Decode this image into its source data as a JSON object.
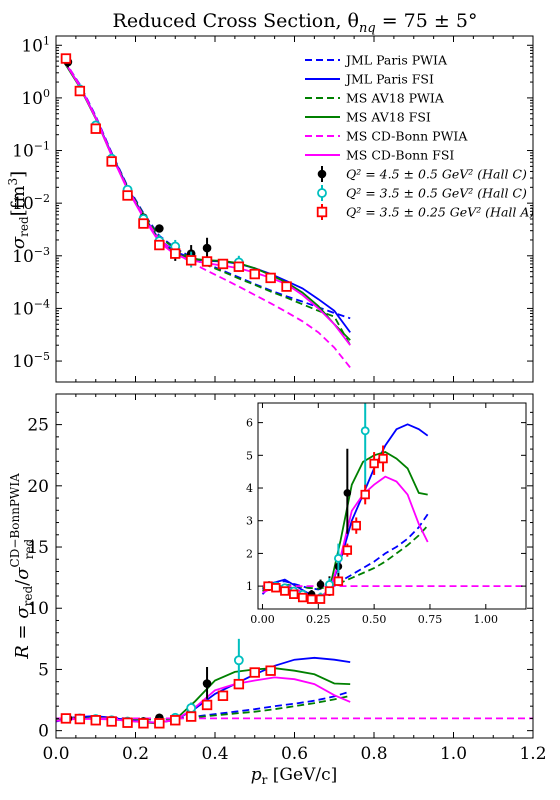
{
  "title": "Reduced Cross Section, θ",
  "title_sub": "nq",
  "title_tail": " = 75 ± 5°",
  "legend": {
    "lines": [
      {
        "label": "JML Paris PWIA",
        "color": "#0000ff",
        "dash": true
      },
      {
        "label": "JML Paris FSI",
        "color": "#0000ff",
        "dash": false
      },
      {
        "label": "MS AV18 PWIA",
        "color": "#008000",
        "dash": true
      },
      {
        "label": "MS AV18 FSI",
        "color": "#008000",
        "dash": false
      },
      {
        "label": "MS CD-Bonn PWIA",
        "color": "#ff00ff",
        "dash": true
      },
      {
        "label": "MS CD-Bonn FSI",
        "color": "#ff00ff",
        "dash": false
      }
    ],
    "points": [
      {
        "label": "Q² = 4.5 ± 0.5 GeV² (Hall C)",
        "color": "#000000",
        "marker": "filled-circle"
      },
      {
        "label": "Q² = 3.5 ± 0.5 GeV² (Hall C)",
        "color": "#00bfbf",
        "marker": "open-circle"
      },
      {
        "label": "Q² = 3.5 ± 0.25 GeV² (Hall A)",
        "color": "#ff0000",
        "marker": "open-square"
      }
    ]
  },
  "chart_data": [
    {
      "type": "line",
      "panel": "top",
      "ylabel": "σ_red [fm³]",
      "yscale": "log",
      "ylim": [
        4e-06,
        15
      ],
      "xlim": [
        0.0,
        1.2
      ],
      "yticks": [
        {
          "v": 1e-05,
          "m": "10",
          "e": "−5"
        },
        {
          "v": 0.0001,
          "m": "10",
          "e": "−4"
        },
        {
          "v": 0.001,
          "m": "10",
          "e": "−3"
        },
        {
          "v": 0.01,
          "m": "10",
          "e": "−2"
        },
        {
          "v": 0.1,
          "m": "10",
          "e": "−1"
        },
        {
          "v": 1,
          "m": "10",
          "e": "0"
        },
        {
          "v": 10,
          "m": "10",
          "e": "1"
        }
      ],
      "series": [
        {
          "name": "JML Paris PWIA",
          "color": "#0000ff",
          "dash": true,
          "x": [
            0.02,
            0.06,
            0.1,
            0.14,
            0.18,
            0.22,
            0.26,
            0.3,
            0.34,
            0.38,
            0.42,
            0.46,
            0.5,
            0.54,
            0.58,
            0.62,
            0.66,
            0.7,
            0.74
          ],
          "y": [
            5.2,
            1.8,
            0.45,
            0.09,
            0.021,
            0.0065,
            0.0024,
            0.0014,
            0.00095,
            0.0007,
            0.00052,
            0.00039,
            0.00029,
            0.00022,
            0.00017,
            0.000135,
            0.000105,
            8.2e-05,
            6.5e-05
          ]
        },
        {
          "name": "JML Paris FSI",
          "color": "#0000ff",
          "dash": false,
          "x": [
            0.02,
            0.06,
            0.1,
            0.14,
            0.18,
            0.22,
            0.26,
            0.3,
            0.34,
            0.38,
            0.42,
            0.46,
            0.5,
            0.54,
            0.58,
            0.62,
            0.66,
            0.7,
            0.74
          ],
          "y": [
            5.0,
            1.7,
            0.42,
            0.085,
            0.02,
            0.0058,
            0.002,
            0.0012,
            0.0009,
            0.0008,
            0.00078,
            0.0007,
            0.00058,
            0.00045,
            0.00033,
            0.00024,
            0.00015,
            9e-05,
            3.5e-05
          ]
        },
        {
          "name": "MS AV18 PWIA",
          "color": "#008000",
          "dash": true,
          "x": [
            0.02,
            0.06,
            0.1,
            0.14,
            0.18,
            0.22,
            0.26,
            0.3,
            0.34,
            0.38,
            0.42,
            0.46,
            0.5,
            0.54,
            0.58,
            0.62,
            0.66,
            0.7,
            0.74
          ],
          "y": [
            5.0,
            1.7,
            0.42,
            0.085,
            0.02,
            0.0062,
            0.0023,
            0.00135,
            0.0009,
            0.00066,
            0.0005,
            0.00037,
            0.00028,
            0.00021,
            0.00016,
            0.00012,
            9e-05,
            7e-05,
            2e-05
          ]
        },
        {
          "name": "MS AV18 FSI",
          "color": "#008000",
          "dash": false,
          "x": [
            0.02,
            0.06,
            0.1,
            0.14,
            0.18,
            0.22,
            0.26,
            0.3,
            0.34,
            0.38,
            0.42,
            0.46,
            0.5,
            0.54,
            0.58,
            0.62,
            0.66,
            0.7,
            0.74
          ],
          "y": [
            4.8,
            1.6,
            0.4,
            0.08,
            0.019,
            0.0056,
            0.0019,
            0.0011,
            0.00088,
            0.00082,
            0.0008,
            0.00072,
            0.00058,
            0.00043,
            0.00031,
            0.0002,
            0.00011,
            5e-05,
            2.5e-05
          ]
        },
        {
          "name": "MS CD-Bonn PWIA",
          "color": "#ff00ff",
          "dash": true,
          "x": [
            0.02,
            0.06,
            0.1,
            0.14,
            0.18,
            0.22,
            0.26,
            0.3,
            0.34,
            0.38,
            0.42,
            0.46,
            0.5,
            0.54,
            0.58,
            0.62,
            0.66,
            0.7,
            0.74
          ],
          "y": [
            5.3,
            1.75,
            0.43,
            0.085,
            0.019,
            0.0058,
            0.002,
            0.00115,
            0.00075,
            0.00052,
            0.00037,
            0.00026,
            0.00018,
            0.000125,
            8.5e-05,
            5.7e-05,
            3.5e-05,
            1.8e-05,
            7.5e-06
          ]
        },
        {
          "name": "MS CD-Bonn FSI",
          "color": "#ff00ff",
          "dash": false,
          "x": [
            0.02,
            0.06,
            0.1,
            0.14,
            0.18,
            0.22,
            0.26,
            0.3,
            0.34,
            0.38,
            0.42,
            0.46,
            0.5,
            0.54,
            0.58,
            0.62,
            0.66,
            0.7,
            0.74
          ],
          "y": [
            5.1,
            1.65,
            0.41,
            0.08,
            0.018,
            0.0053,
            0.0018,
            0.00105,
            0.00082,
            0.00072,
            0.00065,
            0.00058,
            0.00048,
            0.00038,
            0.00029,
            0.00018,
            0.0001,
            5e-05,
            2e-05
          ]
        }
      ],
      "points": [
        {
          "name": "Q² = 4.5 ± 0.5 GeV² (Hall C)",
          "color": "#000000",
          "marker": "filled-circle",
          "x": [
            0.03,
            0.06,
            0.1,
            0.14,
            0.18,
            0.22,
            0.26,
            0.3,
            0.34,
            0.38
          ],
          "y": [
            4.8,
            1.4,
            0.28,
            0.065,
            0.018,
            0.0053,
            0.0033,
            0.0012,
            0.0011,
            0.0014
          ],
          "lo": [
            3.8,
            1.2,
            0.24,
            0.055,
            0.015,
            0.0045,
            0.0028,
            0.0008,
            0.0008,
            0.0009
          ],
          "hi": [
            5.8,
            1.6,
            0.32,
            0.075,
            0.021,
            0.0061,
            0.0038,
            0.0017,
            0.0016,
            0.0022
          ]
        },
        {
          "name": "Q² = 3.5 ± 0.5 GeV² (Hall C)",
          "color": "#00bfbf",
          "marker": "open-circle",
          "x": [
            0.06,
            0.1,
            0.14,
            0.18,
            0.22,
            0.26,
            0.3,
            0.34,
            0.46
          ],
          "y": [
            1.45,
            0.3,
            0.07,
            0.018,
            0.005,
            0.0019,
            0.0015,
            0.00085,
            0.00075
          ],
          "lo": [
            1.3,
            0.26,
            0.06,
            0.015,
            0.0042,
            0.0014,
            0.0011,
            0.0006,
            0.0005
          ],
          "hi": [
            1.6,
            0.34,
            0.08,
            0.021,
            0.0058,
            0.0025,
            0.002,
            0.0012,
            0.001
          ]
        },
        {
          "name": "Q² = 3.5 ± 0.25 GeV² (Hall A)",
          "color": "#ff0000",
          "marker": "open-square",
          "x": [
            0.025,
            0.06,
            0.1,
            0.14,
            0.18,
            0.22,
            0.26,
            0.3,
            0.34,
            0.38,
            0.42,
            0.46,
            0.5,
            0.54,
            0.58
          ],
          "y": [
            5.6,
            1.35,
            0.26,
            0.062,
            0.014,
            0.0041,
            0.0016,
            0.0011,
            0.00082,
            0.00078,
            0.0007,
            0.00062,
            0.00045,
            0.00038,
            0.00026
          ],
          "lo": [
            5.1,
            1.25,
            0.24,
            0.057,
            0.013,
            0.0037,
            0.0014,
            0.00095,
            0.0007,
            0.00067,
            0.0006,
            0.00053,
            0.00038,
            0.00032,
            0.00021
          ],
          "hi": [
            6.1,
            1.45,
            0.28,
            0.067,
            0.015,
            0.0045,
            0.0018,
            0.00125,
            0.00094,
            0.0009,
            0.0008,
            0.00071,
            0.00052,
            0.00044,
            0.00031
          ]
        }
      ]
    },
    {
      "type": "line",
      "panel": "bottom",
      "xlabel": "p_r [GeV/c]",
      "ylabel": "R = σ_red / σ_red^CD−BonnPWIA",
      "xlim": [
        0.0,
        1.2
      ],
      "ylim": [
        -0.6,
        27.5
      ],
      "xticks": [
        0.0,
        0.2,
        0.4,
        0.6,
        0.8,
        1.0,
        1.2
      ],
      "yticks": [
        0,
        5,
        10,
        15,
        20,
        25
      ],
      "series": [
        {
          "name": "JML Paris PWIA",
          "color": "#0000ff",
          "dash": true,
          "x": [
            0.0,
            0.05,
            0.1,
            0.15,
            0.2,
            0.25,
            0.3,
            0.35,
            0.4,
            0.45,
            0.5,
            0.55,
            0.6,
            0.65,
            0.7,
            0.74
          ],
          "y": [
            0.9,
            1.1,
            1.15,
            1.05,
            0.95,
            0.9,
            1.0,
            1.15,
            1.35,
            1.55,
            1.75,
            2.0,
            2.2,
            2.45,
            2.8,
            3.2
          ]
        },
        {
          "name": "JML Paris FSI",
          "color": "#0000ff",
          "dash": false,
          "x": [
            0.0,
            0.05,
            0.1,
            0.15,
            0.2,
            0.25,
            0.3,
            0.35,
            0.4,
            0.45,
            0.5,
            0.55,
            0.6,
            0.65,
            0.7,
            0.74
          ],
          "y": [
            0.75,
            1.1,
            1.2,
            1.0,
            0.8,
            0.65,
            0.85,
            1.8,
            3.0,
            3.8,
            4.6,
            5.3,
            5.8,
            5.95,
            5.8,
            5.6
          ]
        },
        {
          "name": "MS AV18 PWIA",
          "color": "#008000",
          "dash": true,
          "x": [
            0.0,
            0.05,
            0.1,
            0.15,
            0.2,
            0.25,
            0.3,
            0.35,
            0.4,
            0.45,
            0.5,
            0.55,
            0.6,
            0.65,
            0.7,
            0.74
          ],
          "y": [
            0.95,
            1.05,
            1.05,
            1.0,
            0.95,
            0.92,
            0.98,
            1.1,
            1.25,
            1.4,
            1.55,
            1.75,
            2.0,
            2.25,
            2.55,
            2.85
          ]
        },
        {
          "name": "MS AV18 FSI",
          "color": "#008000",
          "dash": false,
          "x": [
            0.0,
            0.05,
            0.1,
            0.15,
            0.2,
            0.25,
            0.3,
            0.35,
            0.4,
            0.45,
            0.5,
            0.55,
            0.6,
            0.65,
            0.7,
            0.74
          ],
          "y": [
            0.85,
            1.0,
            1.0,
            0.9,
            0.75,
            0.6,
            0.9,
            2.4,
            4.1,
            4.8,
            5.0,
            5.1,
            4.9,
            4.6,
            3.85,
            3.8
          ]
        },
        {
          "name": "MS CD-Bonn PWIA",
          "color": "#ff00ff",
          "dash": true,
          "x": [
            0.0,
            0.2,
            0.4,
            0.6,
            0.8,
            1.0,
            1.2
          ],
          "y": [
            1,
            1,
            1,
            1,
            1,
            1,
            1
          ]
        },
        {
          "name": "MS CD-Bonn FSI",
          "color": "#ff00ff",
          "dash": false,
          "x": [
            0.0,
            0.05,
            0.1,
            0.15,
            0.2,
            0.25,
            0.3,
            0.35,
            0.4,
            0.45,
            0.5,
            0.55,
            0.6,
            0.65,
            0.7,
            0.74
          ],
          "y": [
            0.8,
            0.95,
            0.95,
            0.9,
            0.75,
            0.65,
            0.85,
            1.9,
            3.3,
            3.8,
            4.1,
            4.35,
            4.2,
            3.8,
            2.9,
            2.35
          ]
        }
      ],
      "points": [
        {
          "name": "Q² = 4.5 ± 0.5 GeV² (Hall C)",
          "color": "#000000",
          "marker": "filled-circle",
          "x": [
            0.03,
            0.06,
            0.1,
            0.14,
            0.18,
            0.22,
            0.26,
            0.3,
            0.34,
            0.38
          ],
          "y": [
            1.0,
            1.0,
            0.92,
            0.85,
            0.75,
            0.75,
            1.05,
            1.0,
            1.6,
            3.85
          ],
          "lo": [
            0.85,
            0.88,
            0.82,
            0.75,
            0.65,
            0.62,
            0.9,
            0.7,
            1.2,
            2.6
          ],
          "hi": [
            1.15,
            1.12,
            1.02,
            0.95,
            0.85,
            0.88,
            1.2,
            1.3,
            2.0,
            5.2
          ]
        },
        {
          "name": "Q² = 3.5 ± 0.5 GeV² (Hall C)",
          "color": "#00bfbf",
          "marker": "open-circle",
          "x": [
            0.06,
            0.1,
            0.14,
            0.18,
            0.22,
            0.26,
            0.3,
            0.34,
            0.46
          ],
          "y": [
            1.0,
            0.95,
            0.85,
            0.75,
            0.6,
            0.65,
            1.05,
            1.85,
            5.75
          ],
          "lo": [
            0.9,
            0.85,
            0.75,
            0.65,
            0.5,
            0.5,
            0.85,
            1.4,
            4.0
          ],
          "hi": [
            1.1,
            1.05,
            0.95,
            0.85,
            0.7,
            0.8,
            1.25,
            2.3,
            7.5
          ]
        },
        {
          "name": "Q² = 3.5 ± 0.25 GeV² (Hall A)",
          "color": "#ff0000",
          "marker": "open-square",
          "x": [
            0.025,
            0.06,
            0.1,
            0.14,
            0.18,
            0.22,
            0.26,
            0.3,
            0.34,
            0.38,
            0.42,
            0.46,
            0.5,
            0.54
          ],
          "y": [
            1.0,
            0.95,
            0.85,
            0.75,
            0.65,
            0.6,
            0.6,
            0.85,
            1.15,
            2.1,
            2.85,
            3.8,
            4.75,
            4.9
          ],
          "lo": [
            0.9,
            0.87,
            0.78,
            0.68,
            0.58,
            0.53,
            0.52,
            0.75,
            1.0,
            1.9,
            2.6,
            3.5,
            4.4,
            4.5
          ],
          "hi": [
            1.1,
            1.03,
            0.92,
            0.82,
            0.72,
            0.67,
            0.68,
            0.95,
            1.3,
            2.3,
            3.1,
            4.1,
            5.1,
            5.3
          ]
        }
      ]
    },
    {
      "type": "line",
      "panel": "inset",
      "xlim": [
        -0.02,
        1.18
      ],
      "ylim": [
        0.3,
        6.6
      ],
      "xticks": [
        0.0,
        0.25,
        0.5,
        0.75,
        1.0
      ],
      "yticks": [
        1,
        2,
        3,
        4,
        5,
        6
      ]
    }
  ]
}
